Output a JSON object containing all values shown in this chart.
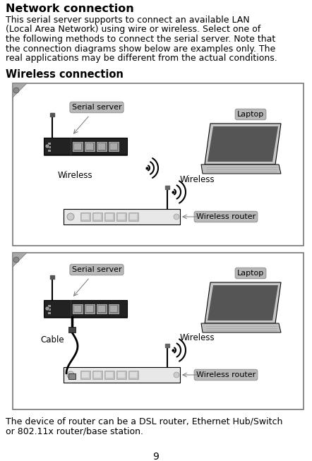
{
  "title": "Network connection",
  "body_lines": [
    "This serial server supports to connect an available LAN",
    "(Local Area Network) using wire or wireless. Select one of",
    "the following methods to connect the serial server. Note that",
    "the connection diagrams show below are examples only. The",
    "real applications may be different from the actual conditions."
  ],
  "section_title": "Wireless connection",
  "footer_lines": [
    "The device of router can be a DSL router, Ethernet Hub/Switch",
    "or 802.11x router/base station."
  ],
  "page_number": "9",
  "bg_color": "#ffffff",
  "text_color": "#000000",
  "label_bg": "#bbbbbb",
  "border_color": "#888888",
  "device_dark": "#222222",
  "device_light": "#e0e0e0",
  "port_color": "#666666",
  "port_light": "#aaaaaa"
}
